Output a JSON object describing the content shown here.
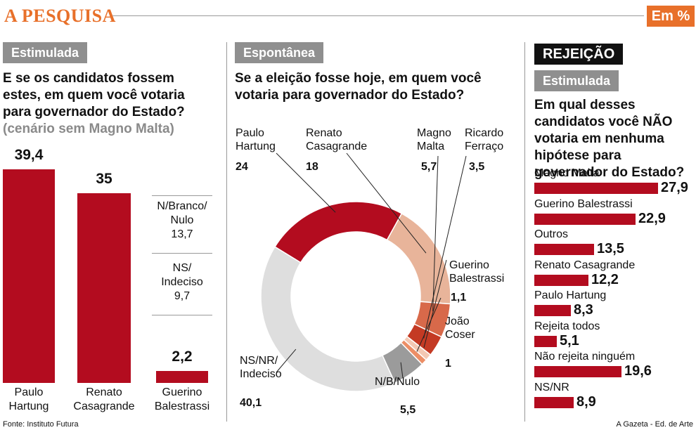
{
  "header": {
    "title": "A PESQUISA",
    "unit": "Em %"
  },
  "footer": {
    "source": "Fonte: Instituto Futura",
    "credit": "A Gazeta - Ed. de Arte"
  },
  "colors": {
    "accent": "#e8702a",
    "bar_red": "#b30c1f"
  },
  "panels": {
    "stimulated": {
      "tag": "Estimulada",
      "question": "E se os candidatos fossem estes, em quem você votaria para governador do Estado?",
      "note": "(cenário sem Magno Malta)"
    },
    "spontaneous": {
      "tag": "Espontânea",
      "question": "Se a eleição fosse hoje, em quem você votaria para governador do Estado?"
    },
    "rejection": {
      "tag_main": "REJEIÇÃO",
      "tag_sub": "Estimulada",
      "question": "Em qual desses candidatos você NÃO votaria em nenhuma hipótese para governador do Estado?"
    }
  },
  "chart_data": [
    {
      "type": "bar",
      "categories": [
        "Paulo Hartung",
        "Renato Casagrande",
        "Guerino Balestrassi"
      ],
      "values": [
        39.4,
        35,
        2.2
      ],
      "value_labels": [
        "39,4",
        "35",
        "2,2"
      ],
      "category_lines": [
        [
          "Paulo",
          "Hartung"
        ],
        [
          "Renato",
          "Casagrande"
        ],
        [
          "Guerino",
          "Balestrassi"
        ]
      ],
      "side_items": [
        {
          "lines": [
            "N/Branco/",
            "Nulo"
          ],
          "value": "13,7"
        },
        {
          "lines": [
            "NS/",
            "Indeciso"
          ],
          "value": "9,7"
        }
      ]
    },
    {
      "type": "pie",
      "slices": [
        {
          "name": "Paulo Hartung",
          "value": 24,
          "label": "24",
          "color": "#b30c1f",
          "lines": [
            "Paulo",
            "Hartung"
          ]
        },
        {
          "name": "Renato Casagrande",
          "value": 18,
          "label": "18",
          "color": "#e8b49a",
          "lines": [
            "Renato",
            "Casagrande"
          ]
        },
        {
          "name": "Magno Malta",
          "value": 5.7,
          "label": "5,7",
          "color": "#d8694a",
          "lines": [
            "Magno",
            "Malta"
          ]
        },
        {
          "name": "Ricardo Ferraço",
          "value": 3.5,
          "label": "3,5",
          "color": "#c43a24",
          "lines": [
            "Ricardo",
            "Ferraço"
          ]
        },
        {
          "name": "Guerino Balestrassi",
          "value": 1.1,
          "label": "1,1",
          "color": "#f3c8b3",
          "lines": [
            "Guerino",
            "Balestrassi"
          ]
        },
        {
          "name": "João Coser",
          "value": 1,
          "label": "1",
          "color": "#ec8e66",
          "lines": [
            "João",
            "Coser"
          ]
        },
        {
          "name": "N/B/Nulo",
          "value": 5.5,
          "label": "5,5",
          "color": "#9b9b9b",
          "lines": [
            "N/B/Nulo"
          ]
        },
        {
          "name": "NS/NR/Indeciso",
          "value": 40.1,
          "label": "40,1",
          "color": "#dedede",
          "lines": [
            "NS/NR/",
            "Indeciso"
          ]
        }
      ]
    },
    {
      "type": "bar",
      "orientation": "horizontal",
      "categories": [
        "Magno Malta",
        "Guerino Balestrassi",
        "Outros",
        "Renato Casagrande",
        "Paulo Hartung",
        "Rejeita todos",
        "Não rejeita ninguém",
        "NS/NR"
      ],
      "values": [
        27.9,
        22.9,
        13.5,
        12.2,
        8.3,
        5.1,
        19.6,
        8.9
      ],
      "value_labels": [
        "27,9",
        "22,9",
        "13,5",
        "12,2",
        "8,3",
        "5,1",
        "19,6",
        "8,9"
      ]
    }
  ]
}
